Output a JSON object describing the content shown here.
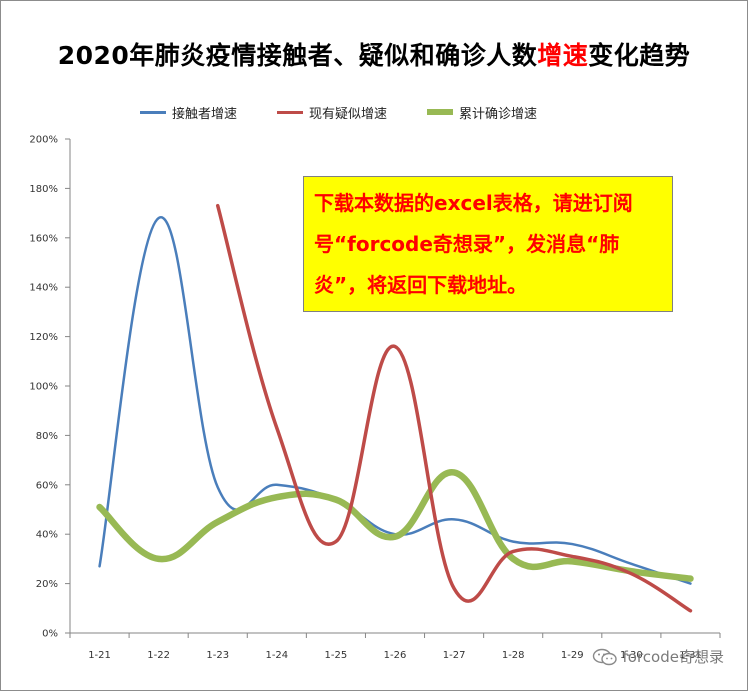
{
  "chart_data": {
    "type": "line",
    "title_prefix": "2020年肺炎疫情接触者、疑似和确诊人数",
    "title_highlight": "增速",
    "title_suffix": "变化趋势",
    "categories": [
      "1-21",
      "1-22",
      "1-23",
      "1-24",
      "1-25",
      "1-26",
      "1-27",
      "1-28",
      "1-29",
      "1-30",
      "1-31"
    ],
    "ylim": [
      0,
      200
    ],
    "yticks": [
      "0%",
      "20%",
      "40%",
      "60%",
      "80%",
      "100%",
      "120%",
      "140%",
      "160%",
      "180%",
      "200%"
    ],
    "grid": false,
    "legend_position": "top",
    "series": [
      {
        "name": "接触者增速",
        "color": "#4a7ebb",
        "width": 2.5,
        "values": [
          27,
          168,
          59,
          60,
          54,
          40,
          46,
          37,
          36,
          28,
          20
        ]
      },
      {
        "name": "现有疑似增速",
        "color": "#be4b48",
        "width": 3.5,
        "values": [
          null,
          null,
          173,
          83,
          37,
          116,
          18,
          33,
          31,
          24,
          9
        ]
      },
      {
        "name": "累计确诊增速",
        "color": "#98b954",
        "width": 6.5,
        "values": [
          51,
          30,
          45,
          55,
          54,
          39,
          65,
          30,
          29,
          25,
          22
        ]
      }
    ]
  },
  "notice": {
    "text": "下载本数据的excel表格，请进订阅号“forcode奇想录”，发消息“肺炎”，将返回下载地址。"
  },
  "watermark": {
    "text": "forcode奇想录",
    "icon": "wechat-icon"
  }
}
